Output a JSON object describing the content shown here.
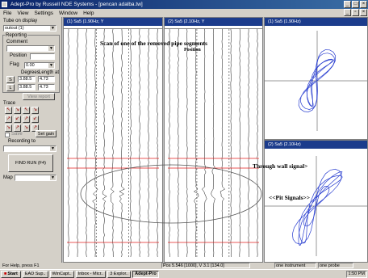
{
  "window": {
    "title": "Adept-Pro by Russell NDE Systems - [pencan adalba.tw]"
  },
  "menu": {
    "items": [
      "File",
      "View",
      "Settings",
      "Window",
      "Help"
    ]
  },
  "left_panel": {
    "tube_label": "Tube on display",
    "tube_value": "outout (1)",
    "reporting_label": "Reporting",
    "comment_label": "Comment",
    "position_label": "Position",
    "flag_label": "Flag",
    "flag_value": "0.00",
    "degrees_label": "Degrees",
    "length_label": "Length at",
    "row1_btn": "S",
    "row1_val1": "3.88.5",
    "row1_val2": "4.73",
    "row2_btn": "L",
    "row2_val1": "3.88.5",
    "row2_val2": "4.73",
    "view_report_btn": "View report",
    "trace_label": "Trace",
    "save_label": "Save",
    "set_gain_btn": "Set gain",
    "recording_label": "Recording to",
    "rec_btn_line1": "FIND RUN (F4)",
    "map_label": "Map"
  },
  "tools": [
    "↖",
    "↘",
    "↖",
    "↘",
    "↗",
    "↙",
    "↗",
    "↙",
    "↘",
    "↗",
    "↘",
    "↗"
  ],
  "panels": {
    "trace_left_header": "(1) Sa5  (1.90Hz, Y",
    "trace_right_header": "(2) Sa5  (2.10Hz, Y",
    "lisa_top_header": "(1) Sa5  (1.90Hz)",
    "lisa_bottom_header": "(2) Sa5  (2.10Hz)"
  },
  "annotations": {
    "scan_line1": "Scan of one of the removed pipe segments",
    "scan_line2": "Position",
    "wall_signal": "Through wall signal>",
    "pit_signals": "<<Pit Signals>>"
  },
  "status": {
    "help": "For Help, press F1",
    "pos": "Pos 5.546 [1000], V 3.1 [134.0]",
    "instrument": "one instrument",
    "probe": "one probe"
  },
  "taskbar": {
    "start": "Start",
    "items": [
      "EAD Sup..",
      "WinCapt..",
      "Inbox - Micr..",
      "3 Explor..",
      "Adept-Pro"
    ],
    "clock": "1:50 PM"
  },
  "colors": {
    "title_bg": "#0a246a",
    "signal_blue": "#2a3fd0",
    "red_line": "#e02020",
    "panel_head": "#1c3c8c"
  }
}
